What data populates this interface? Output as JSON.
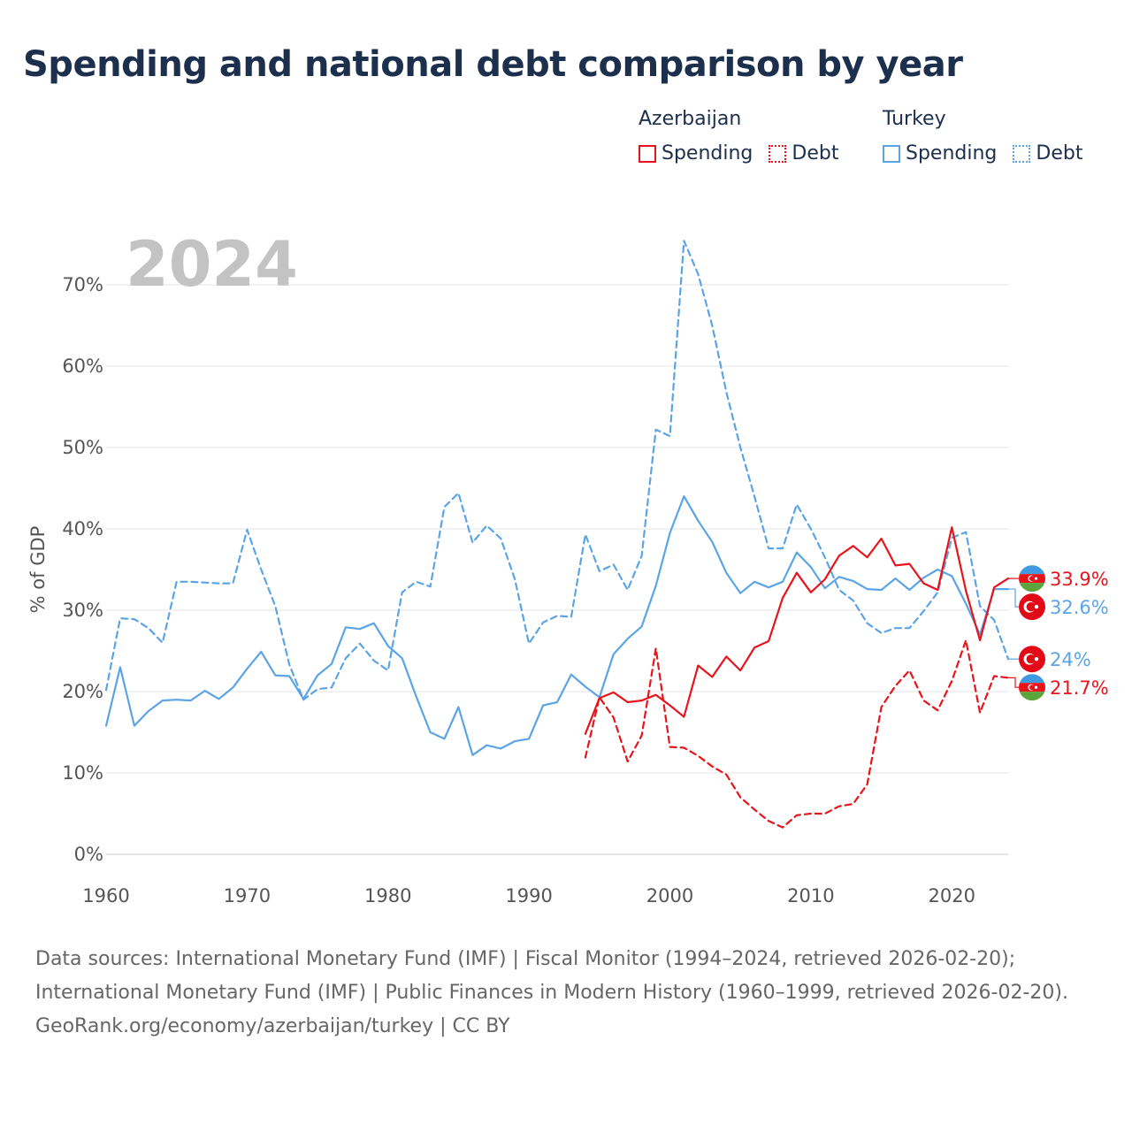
{
  "title": "Spending and national debt comparison by year",
  "legend": {
    "groups": [
      {
        "label": "Azerbaijan",
        "spending_label": "Spending",
        "debt_label": "Debt",
        "color": "#e8141b"
      },
      {
        "label": "Turkey",
        "spending_label": "Spending",
        "debt_label": "Debt",
        "color": "#5ba4e5"
      }
    ]
  },
  "footer": {
    "sources": "Data sources: International Monetary Fund (IMF) | Fiscal Monitor (1994–2024, retrieved 2026-02-20); International Monetary Fund (IMF) | Public Finances in Modern History (1960–1999, retrieved 2026-02-20).",
    "credit": "GeoRank.org/economy/azerbaijan/turkey | CC BY"
  },
  "chart_data": {
    "type": "line",
    "year_label": "2024",
    "ylabel": "% of GDP",
    "xlim": [
      1960,
      2024
    ],
    "ylim": [
      0,
      75
    ],
    "x_ticks": [
      1960,
      1970,
      1980,
      1990,
      2000,
      2010,
      2020
    ],
    "y_ticks": [
      0,
      10,
      20,
      30,
      40,
      50,
      60,
      70
    ],
    "y_tick_labels": [
      "0%",
      "10%",
      "20%",
      "30%",
      "40%",
      "50%",
      "60%",
      "70%"
    ],
    "series": [
      {
        "name": "Turkey Debt",
        "country": "Turkey",
        "metric": "Debt",
        "color": "#5ba4e5",
        "dash": true,
        "end_label": "24%",
        "end_flag": "turkey",
        "points": [
          [
            1960,
            20.2
          ],
          [
            1961,
            29.0
          ],
          [
            1962,
            28.9
          ],
          [
            1963,
            27.8
          ],
          [
            1964,
            26.0
          ],
          [
            1965,
            33.5
          ],
          [
            1966,
            33.5
          ],
          [
            1967,
            33.4
          ],
          [
            1968,
            33.3
          ],
          [
            1969,
            33.3
          ],
          [
            1970,
            39.9
          ],
          [
            1971,
            35.0
          ],
          [
            1972,
            30.5
          ],
          [
            1973,
            23.3
          ],
          [
            1974,
            19.0
          ],
          [
            1975,
            20.3
          ],
          [
            1976,
            20.5
          ],
          [
            1977,
            24.1
          ],
          [
            1978,
            25.9
          ],
          [
            1979,
            23.8
          ],
          [
            1980,
            22.6
          ],
          [
            1981,
            32.2
          ],
          [
            1982,
            33.5
          ],
          [
            1983,
            32.9
          ],
          [
            1984,
            42.7
          ],
          [
            1985,
            44.4
          ],
          [
            1986,
            38.3
          ],
          [
            1987,
            40.4
          ],
          [
            1988,
            38.8
          ],
          [
            1989,
            33.8
          ],
          [
            1990,
            25.9
          ],
          [
            1991,
            28.5
          ],
          [
            1992,
            29.3
          ],
          [
            1993,
            29.2
          ],
          [
            1994,
            39.3
          ],
          [
            1995,
            34.8
          ],
          [
            1996,
            35.6
          ],
          [
            1997,
            32.5
          ],
          [
            1998,
            36.7
          ],
          [
            1999,
            52.2
          ],
          [
            2000,
            51.4
          ],
          [
            2001,
            75.4
          ],
          [
            2002,
            71.3
          ],
          [
            2003,
            65.0
          ],
          [
            2004,
            56.8
          ],
          [
            2005,
            50.0
          ],
          [
            2006,
            44.0
          ],
          [
            2007,
            37.6
          ],
          [
            2008,
            37.6
          ],
          [
            2009,
            43.0
          ],
          [
            2010,
            40.0
          ],
          [
            2011,
            36.5
          ],
          [
            2012,
            32.5
          ],
          [
            2013,
            31.2
          ],
          [
            2014,
            28.4
          ],
          [
            2015,
            27.2
          ],
          [
            2016,
            27.8
          ],
          [
            2017,
            27.8
          ],
          [
            2018,
            29.9
          ],
          [
            2019,
            32.2
          ],
          [
            2020,
            38.9
          ],
          [
            2021,
            39.6
          ],
          [
            2022,
            30.5
          ],
          [
            2023,
            28.8
          ],
          [
            2024,
            24.0
          ]
        ]
      },
      {
        "name": "Turkey Spending",
        "country": "Turkey",
        "metric": "Spending",
        "color": "#5ba4e5",
        "dash": false,
        "end_label": "32.6%",
        "end_flag": "turkey",
        "points": [
          [
            1960,
            15.8
          ],
          [
            1961,
            23.0
          ],
          [
            1962,
            15.8
          ],
          [
            1963,
            17.6
          ],
          [
            1964,
            18.9
          ],
          [
            1965,
            19.0
          ],
          [
            1966,
            18.9
          ],
          [
            1967,
            20.1
          ],
          [
            1968,
            19.1
          ],
          [
            1969,
            20.5
          ],
          [
            1970,
            22.8
          ],
          [
            1971,
            24.9
          ],
          [
            1972,
            22.0
          ],
          [
            1973,
            21.9
          ],
          [
            1974,
            19.1
          ],
          [
            1975,
            22.0
          ],
          [
            1976,
            23.4
          ],
          [
            1977,
            27.9
          ],
          [
            1978,
            27.7
          ],
          [
            1979,
            28.4
          ],
          [
            1980,
            25.6
          ],
          [
            1981,
            24.1
          ],
          [
            1982,
            19.4
          ],
          [
            1983,
            15.0
          ],
          [
            1984,
            14.2
          ],
          [
            1985,
            18.1
          ],
          [
            1986,
            12.2
          ],
          [
            1987,
            13.4
          ],
          [
            1988,
            13.0
          ],
          [
            1989,
            13.9
          ],
          [
            1990,
            14.2
          ],
          [
            1991,
            18.3
          ],
          [
            1992,
            18.7
          ],
          [
            1993,
            22.1
          ],
          [
            1994,
            20.6
          ],
          [
            1995,
            19.3
          ],
          [
            1996,
            24.6
          ],
          [
            1997,
            26.5
          ],
          [
            1998,
            28.0
          ],
          [
            1999,
            33.0
          ],
          [
            2000,
            39.5
          ],
          [
            2001,
            44.0
          ],
          [
            2002,
            41.0
          ],
          [
            2003,
            38.4
          ],
          [
            2004,
            34.6
          ],
          [
            2005,
            32.1
          ],
          [
            2006,
            33.5
          ],
          [
            2007,
            32.8
          ],
          [
            2008,
            33.5
          ],
          [
            2009,
            37.1
          ],
          [
            2010,
            35.3
          ],
          [
            2011,
            32.7
          ],
          [
            2012,
            34.1
          ],
          [
            2013,
            33.6
          ],
          [
            2014,
            32.6
          ],
          [
            2015,
            32.5
          ],
          [
            2016,
            33.9
          ],
          [
            2017,
            32.5
          ],
          [
            2018,
            34.0
          ],
          [
            2019,
            35.0
          ],
          [
            2020,
            34.2
          ],
          [
            2021,
            30.8
          ],
          [
            2022,
            27.0
          ],
          [
            2023,
            32.6
          ],
          [
            2024,
            32.6
          ]
        ]
      },
      {
        "name": "Azerbaijan Spending",
        "country": "Azerbaijan",
        "metric": "Spending",
        "color": "#e8141b",
        "dash": false,
        "end_label": "33.9%",
        "end_flag": "azerbaijan",
        "points": [
          [
            1994,
            14.8
          ],
          [
            1995,
            19.2
          ],
          [
            1996,
            19.9
          ],
          [
            1997,
            18.7
          ],
          [
            1998,
            18.9
          ],
          [
            1999,
            19.6
          ],
          [
            2000,
            18.3
          ],
          [
            2001,
            16.9
          ],
          [
            2002,
            23.2
          ],
          [
            2003,
            21.8
          ],
          [
            2004,
            24.3
          ],
          [
            2005,
            22.6
          ],
          [
            2006,
            25.4
          ],
          [
            2007,
            26.2
          ],
          [
            2008,
            31.5
          ],
          [
            2009,
            34.6
          ],
          [
            2010,
            32.2
          ],
          [
            2011,
            33.8
          ],
          [
            2012,
            36.7
          ],
          [
            2013,
            37.9
          ],
          [
            2014,
            36.5
          ],
          [
            2015,
            38.8
          ],
          [
            2016,
            35.5
          ],
          [
            2017,
            35.7
          ],
          [
            2018,
            33.3
          ],
          [
            2019,
            32.5
          ],
          [
            2020,
            40.2
          ],
          [
            2021,
            32.4
          ],
          [
            2022,
            26.3
          ],
          [
            2023,
            32.8
          ],
          [
            2024,
            33.9
          ]
        ]
      },
      {
        "name": "Azerbaijan Debt",
        "country": "Azerbaijan",
        "metric": "Debt",
        "color": "#e8141b",
        "dash": true,
        "end_label": "21.7%",
        "end_flag": "azerbaijan",
        "points": [
          [
            1994,
            11.9
          ],
          [
            1995,
            19.3
          ],
          [
            1996,
            16.8
          ],
          [
            1997,
            11.4
          ],
          [
            1998,
            14.6
          ],
          [
            1999,
            25.3
          ],
          [
            2000,
            13.2
          ],
          [
            2001,
            13.1
          ],
          [
            2002,
            12.1
          ],
          [
            2003,
            10.8
          ],
          [
            2004,
            9.8
          ],
          [
            2005,
            7.0
          ],
          [
            2006,
            5.5
          ],
          [
            2007,
            4.1
          ],
          [
            2008,
            3.3
          ],
          [
            2009,
            4.8
          ],
          [
            2010,
            5.0
          ],
          [
            2011,
            5.0
          ],
          [
            2012,
            5.9
          ],
          [
            2013,
            6.2
          ],
          [
            2014,
            8.6
          ],
          [
            2015,
            18.1
          ],
          [
            2016,
            20.7
          ],
          [
            2017,
            22.6
          ],
          [
            2018,
            18.9
          ],
          [
            2019,
            17.7
          ],
          [
            2020,
            21.3
          ],
          [
            2021,
            26.3
          ],
          [
            2022,
            17.4
          ],
          [
            2023,
            21.9
          ],
          [
            2024,
            21.7
          ]
        ]
      }
    ]
  }
}
